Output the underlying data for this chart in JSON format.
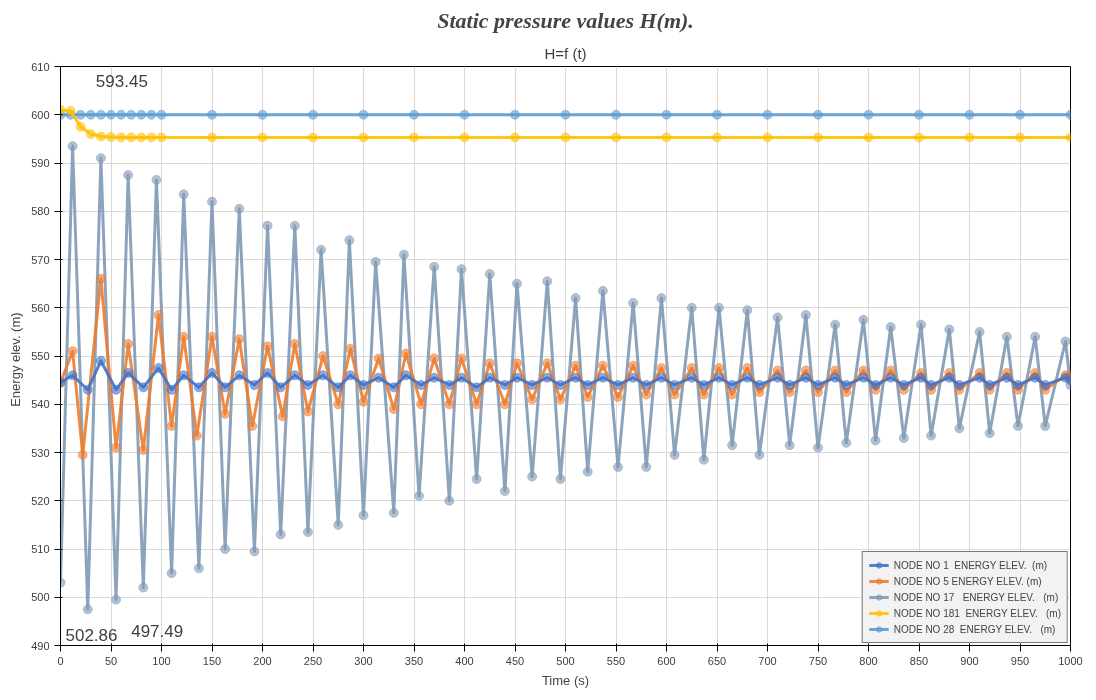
{
  "chart_data": {
    "type": "line",
    "title": "Static pressure values H(m).",
    "subtitle": "H=f (t)",
    "xlabel": "Time (s)",
    "ylabel": "Energy elev.   (m)",
    "x": [
      0,
      10,
      20,
      30,
      40,
      50,
      60,
      70,
      80,
      90,
      100,
      150,
      200,
      250,
      300,
      350,
      400,
      450,
      500,
      550,
      600,
      650,
      700,
      750,
      800,
      850,
      900,
      950,
      1000
    ],
    "xlim": [
      0,
      1000
    ],
    "xticks": [
      0,
      50,
      100,
      150,
      200,
      250,
      300,
      350,
      400,
      450,
      500,
      550,
      600,
      650,
      700,
      750,
      800,
      850,
      900,
      950,
      1000
    ],
    "ylim": [
      490,
      610
    ],
    "yticks": [
      490,
      500,
      510,
      520,
      530,
      540,
      550,
      560,
      570,
      580,
      590,
      600,
      610
    ],
    "grid": true,
    "legend": "bottom right",
    "marker": "circle",
    "line_style": "solid",
    "annotations": [
      "593.45",
      "497.49",
      "502.86"
    ],
    "series": [
      {
        "name": "NODE NO 1  ENERGY ELEV.  (m)",
        "color": "#4472c4",
        "x": [
          0,
          12,
          27,
          40,
          55,
          67,
          82,
          97,
          110,
          122,
          137,
          150,
          163,
          177,
          192,
          205,
          218,
          232,
          245,
          260,
          275,
          287,
          300,
          315,
          330,
          342,
          357,
          370,
          385,
          397,
          412,
          425,
          440,
          452,
          467,
          482,
          495,
          510,
          522,
          537,
          552,
          567,
          580,
          595,
          608,
          625,
          637,
          652,
          665,
          680,
          692,
          710,
          722,
          738,
          750,
          767,
          778,
          795,
          807,
          822,
          835,
          852,
          862,
          880,
          890,
          910,
          920,
          937,
          948,
          965,
          975,
          995,
          1000
        ],
        "values": [
          544.5,
          546,
          543,
          549,
          543,
          546.5,
          543.5,
          547.5,
          543,
          546,
          543.5,
          546.5,
          543.5,
          546,
          544,
          546.5,
          543.5,
          546,
          544,
          546,
          543.5,
          546,
          544,
          545.5,
          543.5,
          546,
          544,
          545.5,
          544,
          545.5,
          543.5,
          545.5,
          544,
          545.5,
          544,
          545.5,
          544,
          545.5,
          544,
          545.5,
          544,
          545.5,
          544,
          545.5,
          544,
          545.5,
          544,
          545.5,
          544,
          545.5,
          544,
          545.5,
          544,
          545.5,
          544,
          545.5,
          544,
          545.5,
          544,
          545.5,
          544,
          545.5,
          544,
          545.5,
          544,
          545.5,
          544,
          545.5,
          544,
          545.5,
          544,
          545.5,
          545
        ]
      },
      {
        "name": "NODE NO 5 ENERGY ELEV. (m)",
        "color": "#ed7d31",
        "x": [
          0,
          12,
          22,
          40,
          55,
          67,
          82,
          97,
          110,
          122,
          135,
          150,
          163,
          177,
          190,
          205,
          220,
          232,
          245,
          260,
          275,
          287,
          300,
          315,
          330,
          342,
          357,
          370,
          385,
          397,
          412,
          425,
          440,
          452,
          467,
          482,
          495,
          510,
          522,
          537,
          552,
          567,
          580,
          595,
          608,
          625,
          637,
          652,
          665,
          680,
          692,
          710,
          722,
          738,
          750,
          767,
          778,
          795,
          807,
          822,
          835,
          852,
          862,
          880,
          890,
          910,
          920,
          937,
          948,
          965,
          975,
          995,
          1000
        ],
        "values": [
          544.5,
          551,
          529.5,
          566,
          531,
          552.5,
          530.5,
          558.5,
          535.5,
          554,
          533.5,
          554,
          538,
          553.5,
          535.5,
          552,
          537.5,
          552.5,
          538.5,
          550,
          540,
          551.5,
          540.5,
          549.5,
          539,
          550.5,
          540,
          549.5,
          540,
          549.5,
          540,
          548.5,
          540,
          548.5,
          541,
          548.5,
          541,
          548,
          541.5,
          548,
          541.5,
          548,
          542,
          547.5,
          542,
          547.5,
          542,
          547.5,
          542,
          547.5,
          542.5,
          547,
          542.5,
          547,
          542.5,
          547,
          542.5,
          547,
          543,
          547,
          543,
          546.5,
          543,
          546.5,
          543,
          546.5,
          543,
          546.5,
          543,
          546.5,
          543,
          546,
          546
        ]
      },
      {
        "name": "NODE NO 17   ENERGY ELEV.   (m)",
        "color": "#7f99b5",
        "x": [
          0,
          12,
          27,
          40,
          55,
          67,
          82,
          95,
          110,
          122,
          137,
          150,
          163,
          177,
          192,
          205,
          218,
          232,
          245,
          258,
          275,
          286,
          300,
          312,
          330,
          340,
          355,
          370,
          385,
          397,
          412,
          425,
          440,
          452,
          467,
          482,
          495,
          510,
          522,
          537,
          552,
          567,
          580,
          595,
          608,
          625,
          637,
          652,
          665,
          680,
          692,
          710,
          722,
          738,
          750,
          767,
          778,
          795,
          807,
          822,
          835,
          852,
          862,
          880,
          890,
          910,
          920,
          937,
          948,
          965,
          975,
          995,
          1000
        ],
        "values": [
          503,
          593.5,
          497.5,
          591,
          499.5,
          587.5,
          502,
          586.5,
          505,
          583.5,
          506,
          582,
          510,
          580.5,
          509.5,
          577,
          513,
          577,
          513.5,
          572,
          515,
          574,
          517,
          569.5,
          517.5,
          571,
          521,
          568.5,
          520,
          568,
          524.5,
          567,
          522,
          565,
          525,
          565.5,
          524.5,
          562,
          526,
          563.5,
          527,
          561,
          527,
          562,
          529.5,
          560,
          528.5,
          560,
          531.5,
          559.5,
          529.5,
          558,
          531.5,
          558.5,
          531,
          556.5,
          532,
          557.5,
          532.5,
          556,
          533,
          556.5,
          533.5,
          555.5,
          535,
          555,
          534,
          554,
          535.5,
          554,
          535.5,
          553,
          544
        ]
      },
      {
        "name": "NODE NO 181  ENERGY ELEV.   (m)",
        "color": "#ffc000",
        "values": [
          601,
          600.8,
          597.5,
          596,
          595.5,
          595.4,
          595.3,
          595.3,
          595.3,
          595.3,
          595.3,
          595.3,
          595.3,
          595.3,
          595.3,
          595.3,
          595.3,
          595.3,
          595.3,
          595.3,
          595.3,
          595.3,
          595.3,
          595.3,
          595.3,
          595.3,
          595.3,
          595.3,
          595.3
        ]
      },
      {
        "name": "NODE NO 28  ENERGY ELEV.   (m)",
        "color": "#5b9bd5",
        "values": [
          600,
          600,
          600,
          600,
          600,
          600,
          600,
          600,
          600,
          600,
          600,
          600,
          600,
          600,
          600,
          600,
          600,
          600,
          600,
          600,
          600,
          600,
          600,
          600,
          600,
          600,
          600,
          600,
          600
        ]
      }
    ]
  }
}
